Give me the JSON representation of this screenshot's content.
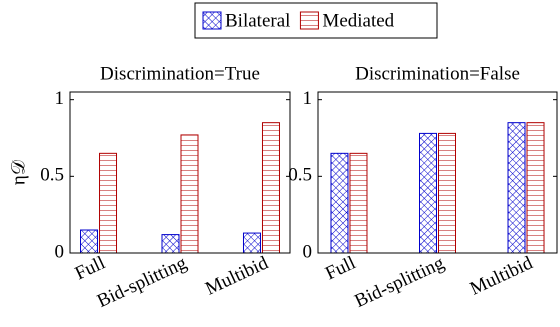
{
  "chart_data": [
    {
      "type": "bar",
      "title": "Discrimination=True",
      "ylabel": "η𝒟",
      "categories": [
        "Full",
        "Bid-splitting",
        "Multibid"
      ],
      "series": [
        {
          "name": "Bilateral",
          "color": "#0000cc",
          "values": [
            0.15,
            0.12,
            0.13
          ]
        },
        {
          "name": "Mediated",
          "color": "#b00000",
          "values": [
            0.65,
            0.77,
            0.85
          ]
        }
      ],
      "ylim": [
        0,
        1.05
      ],
      "yticks": [
        0,
        0.5,
        1
      ]
    },
    {
      "type": "bar",
      "title": "Discrimination=False",
      "categories": [
        "Full",
        "Bid-splitting",
        "Multibid"
      ],
      "series": [
        {
          "color": "#0000cc",
          "values": [
            0.65,
            0.78,
            0.85
          ]
        },
        {
          "color": "#b00000",
          "values": [
            0.65,
            0.78,
            0.85
          ]
        }
      ],
      "ylim": [
        0,
        1.05
      ],
      "yticks": [
        0,
        0.5,
        1
      ]
    }
  ]
}
